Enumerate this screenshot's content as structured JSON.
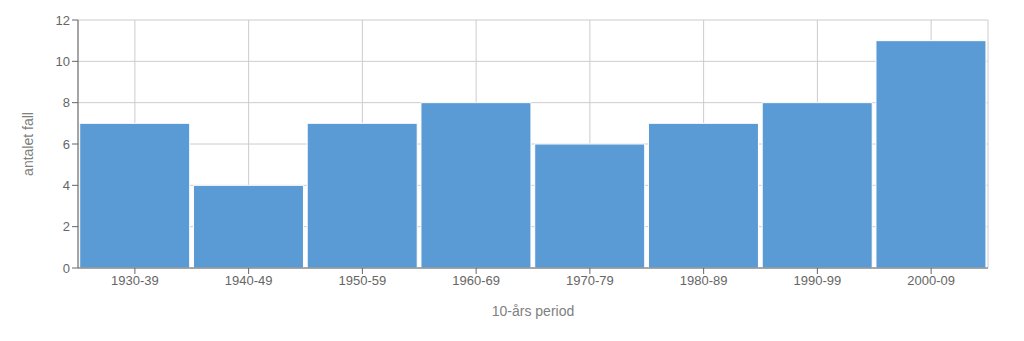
{
  "chart_data": {
    "type": "bar",
    "categories": [
      "1930-39",
      "1940-49",
      "1950-59",
      "1960-69",
      "1970-79",
      "1980-89",
      "1990-99",
      "2000-09"
    ],
    "values": [
      7,
      4,
      7,
      8,
      6,
      7,
      8,
      11
    ],
    "color": "#5b9bd5",
    "xlabel": "10-års period",
    "ylabel": "antalet fall",
    "ylim": [
      0,
      12
    ],
    "yticks": [
      0,
      2,
      4,
      6,
      8,
      10,
      12
    ],
    "grid": true
  }
}
